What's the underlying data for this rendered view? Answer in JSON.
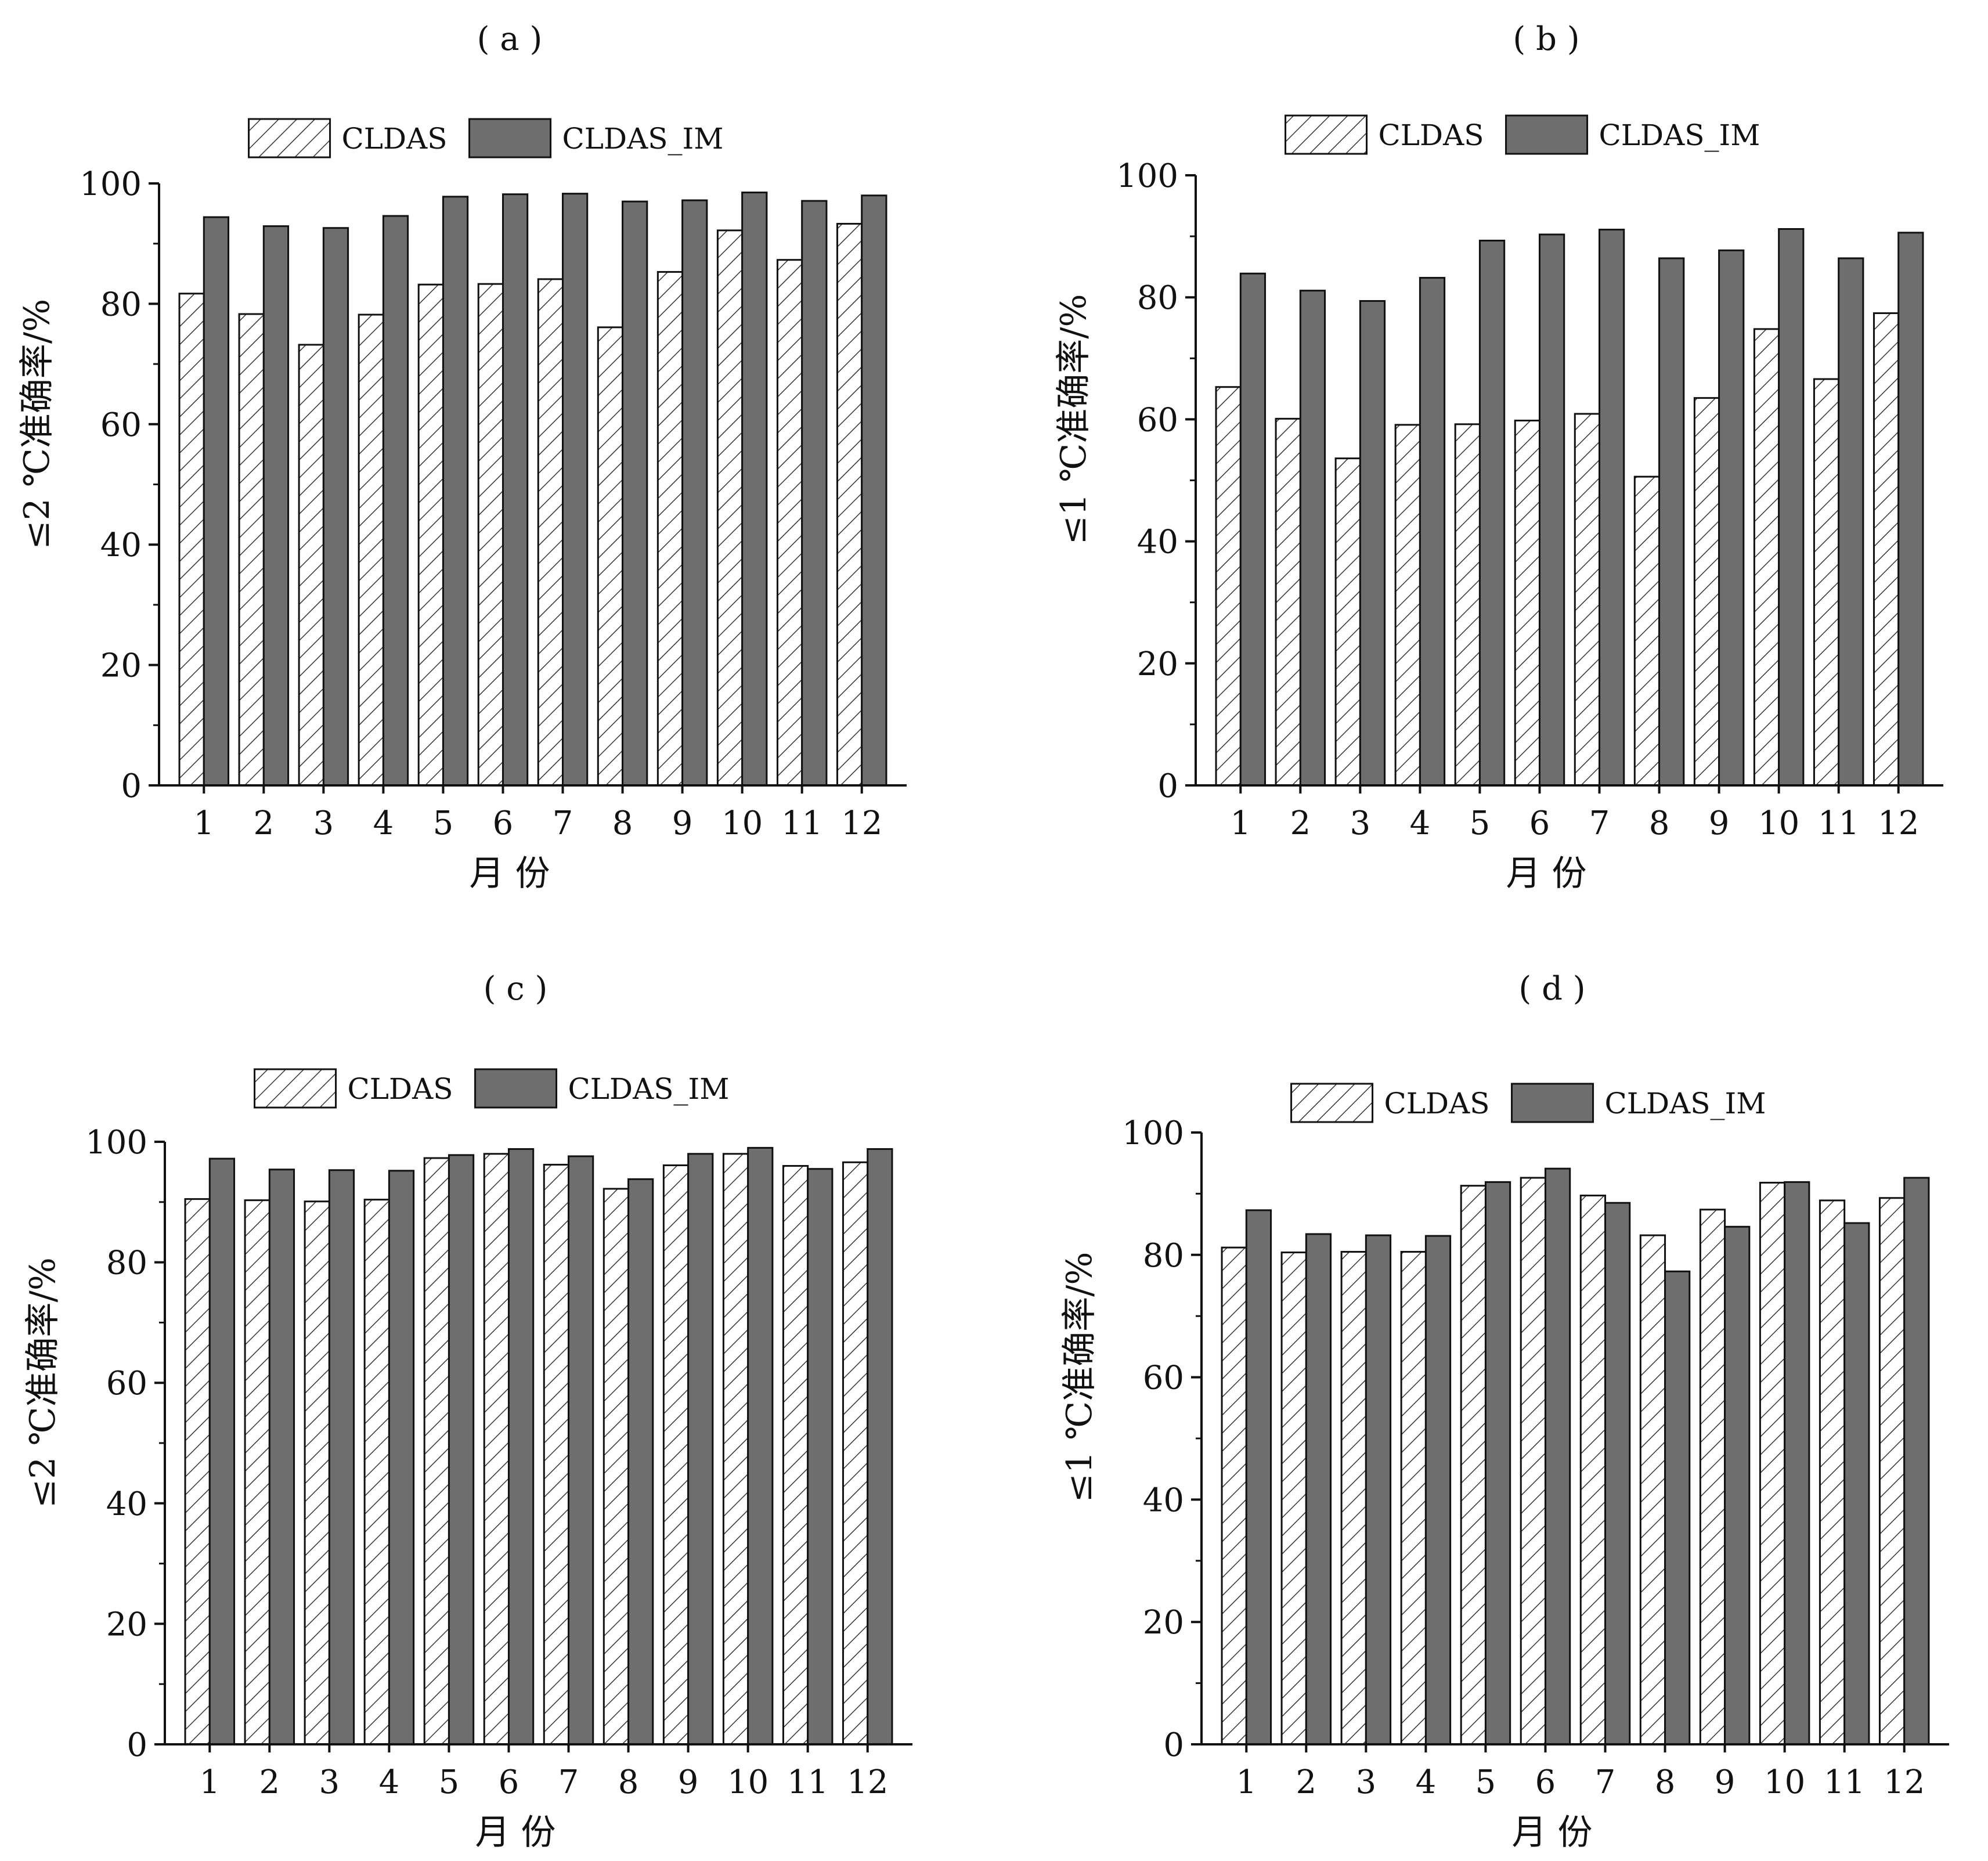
{
  "colors": {
    "im_fill": "#6e6e6e",
    "clsd_fill": "#ffffff",
    "hatch": "#333333",
    "axis": "#111111"
  },
  "chart_data": [
    {
      "panel_label": "( a )",
      "type": "bar",
      "categories": [
        "1",
        "2",
        "3",
        "4",
        "5",
        "6",
        "7",
        "8",
        "9",
        "10",
        "11",
        "12"
      ],
      "xlabel": "月  份",
      "ylabel": "≤2 ℃准确率/%",
      "ylim": [
        0,
        100
      ],
      "yticks": [
        "0",
        "20",
        "40",
        "60",
        "80",
        "100"
      ],
      "legend_placement": "top",
      "series": [
        {
          "name": "CLDAS",
          "pattern": "hatched",
          "values": [
            81.7,
            78.3,
            73.2,
            78.2,
            83.2,
            83.3,
            84.1,
            76.1,
            85.3,
            92.2,
            87.3,
            93.3
          ]
        },
        {
          "name": "CLDAS_IM",
          "pattern": "solid",
          "values": [
            94.4,
            92.9,
            92.6,
            94.6,
            97.8,
            98.2,
            98.3,
            97.0,
            97.2,
            98.5,
            97.1,
            98.0
          ]
        }
      ]
    },
    {
      "panel_label": "( b )",
      "type": "bar",
      "categories": [
        "1",
        "2",
        "3",
        "4",
        "5",
        "6",
        "7",
        "8",
        "9",
        "10",
        "11",
        "12"
      ],
      "xlabel": "月  份",
      "ylabel": "≤1 ℃准确率/%",
      "ylim": [
        0,
        100
      ],
      "yticks": [
        "0",
        "20",
        "40",
        "60",
        "80",
        "100"
      ],
      "legend_placement": "top",
      "series": [
        {
          "name": "CLDAS",
          "pattern": "hatched",
          "values": [
            65.3,
            60.1,
            53.6,
            59.1,
            59.2,
            59.8,
            60.9,
            50.6,
            63.5,
            74.8,
            66.6,
            77.4
          ]
        },
        {
          "name": "CLDAS_IM",
          "pattern": "solid",
          "values": [
            83.9,
            81.1,
            79.4,
            83.2,
            89.3,
            90.3,
            91.1,
            86.4,
            87.7,
            91.2,
            86.4,
            90.6
          ]
        }
      ]
    },
    {
      "panel_label": "( c )",
      "type": "bar",
      "categories": [
        "1",
        "2",
        "3",
        "4",
        "5",
        "6",
        "7",
        "8",
        "9",
        "10",
        "11",
        "12"
      ],
      "xlabel": "月  份",
      "ylabel": "≤2 ℃准确率/%",
      "ylim": [
        0,
        100
      ],
      "yticks": [
        "0",
        "20",
        "40",
        "60",
        "80",
        "100"
      ],
      "legend_placement": "top",
      "series": [
        {
          "name": "CLDAS",
          "pattern": "hatched",
          "values": [
            90.5,
            90.3,
            90.1,
            90.4,
            97.3,
            98.0,
            96.2,
            92.2,
            96.1,
            98.0,
            96.0,
            96.6
          ]
        },
        {
          "name": "CLDAS_IM",
          "pattern": "solid",
          "values": [
            97.2,
            95.4,
            95.3,
            95.2,
            97.8,
            98.8,
            97.6,
            93.8,
            98.0,
            99.0,
            95.5,
            98.8
          ]
        }
      ]
    },
    {
      "panel_label": "( d )",
      "type": "bar",
      "categories": [
        "1",
        "2",
        "3",
        "4",
        "5",
        "6",
        "7",
        "8",
        "9",
        "10",
        "11",
        "12"
      ],
      "xlabel": "月  份",
      "ylabel": "≤1 ℃准确率/%",
      "ylim": [
        0,
        100
      ],
      "yticks": [
        "0",
        "20",
        "40",
        "60",
        "80",
        "100"
      ],
      "legend_placement": "top",
      "series": [
        {
          "name": "CLDAS",
          "pattern": "hatched",
          "values": [
            81.2,
            80.4,
            80.5,
            80.5,
            91.3,
            92.6,
            89.7,
            83.2,
            87.4,
            91.8,
            88.9,
            89.3
          ]
        },
        {
          "name": "CLDAS_IM",
          "pattern": "solid",
          "values": [
            87.3,
            83.4,
            83.2,
            83.1,
            91.9,
            94.1,
            88.5,
            77.3,
            84.6,
            91.9,
            85.2,
            92.6
          ]
        }
      ]
    }
  ]
}
